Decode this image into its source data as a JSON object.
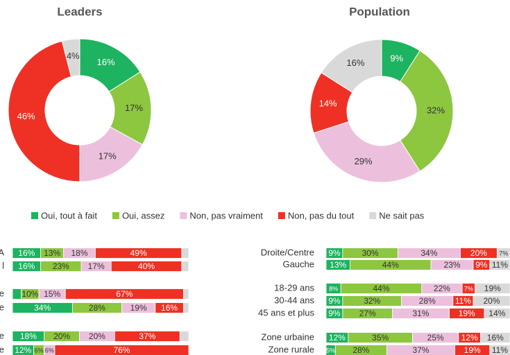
{
  "chart_data": [
    {
      "type": "pie",
      "title": "Leaders",
      "values": [
        16,
        17,
        17,
        46,
        4
      ],
      "value_labels": [
        "16%",
        "17%",
        "17%",
        "46%",
        "4%"
      ],
      "colors": [
        "#1db360",
        "#8dc63f",
        "#ecc0dc",
        "#ee3124",
        "#d9d9d9"
      ]
    },
    {
      "type": "pie",
      "title": "Population",
      "values": [
        9,
        32,
        29,
        14,
        16
      ],
      "value_labels": [
        "9%",
        "32%",
        "29%",
        "14%",
        "16%"
      ],
      "colors": [
        "#1db360",
        "#8dc63f",
        "#ecc0dc",
        "#ee3124",
        "#d9d9d9"
      ]
    },
    {
      "type": "stacked_barh",
      "categories": [
        "A",
        "l",
        "e",
        "e",
        "e",
        "e"
      ],
      "xlim": [
        0,
        100
      ],
      "series": [
        {
          "name": "Oui, tout à fait",
          "color": "#1db360",
          "values": [
            16,
            16,
            5,
            34,
            18,
            12
          ],
          "value_labels": [
            "16%",
            "16%",
            null,
            "34%",
            "18%",
            "12%"
          ]
        },
        {
          "name": "Oui, assez",
          "color": "#8dc63f",
          "values": [
            13,
            23,
            10,
            28,
            20,
            6
          ],
          "value_labels": [
            "13%",
            "23%",
            "10%",
            "28%",
            "20%",
            "6%"
          ]
        },
        {
          "name": "Non, pas vraiment",
          "color": "#ecc0dc",
          "values": [
            18,
            17,
            15,
            19,
            20,
            6
          ],
          "value_labels": [
            "18%",
            "17%",
            "15%",
            "19%",
            "20%",
            "6%"
          ]
        },
        {
          "name": "Non, pas du tout",
          "color": "#ee3124",
          "values": [
            49,
            40,
            67,
            16,
            37,
            76
          ],
          "value_labels": [
            "49%",
            "40%",
            "67%",
            "16%",
            "37%",
            "76%"
          ]
        },
        {
          "name": "Ne sait pas",
          "color": "#d9d9d9",
          "values": [
            4,
            4,
            3,
            3,
            5,
            0
          ],
          "value_labels": [
            null,
            null,
            null,
            null,
            null,
            null
          ]
        }
      ]
    },
    {
      "type": "stacked_barh",
      "categories": [
        "Droite/Centre",
        "Gauche",
        "18-29 ans",
        "30-44 ans",
        "45 ans et plus",
        "Zone urbaine",
        "Zone rurale"
      ],
      "xlim": [
        0,
        100
      ],
      "series": [
        {
          "color": "#1db360",
          "values": [
            9,
            13,
            8,
            9,
            9,
            12,
            5
          ],
          "value_labels": [
            "9%",
            "13%",
            "8%",
            "9%",
            "9%",
            "12%",
            "5%"
          ]
        },
        {
          "color": "#8dc63f",
          "values": [
            30,
            44,
            44,
            32,
            27,
            35,
            28
          ],
          "value_labels": [
            "30%",
            "44%",
            "44%",
            "32%",
            "27%",
            "35%",
            "28%"
          ]
        },
        {
          "color": "#ecc0dc",
          "values": [
            34,
            23,
            22,
            28,
            31,
            25,
            37
          ],
          "value_labels": [
            "34%",
            "23%",
            "22%",
            "28%",
            "31%",
            "25%",
            "37%"
          ]
        },
        {
          "color": "#ee3124",
          "values": [
            20,
            9,
            7,
            11,
            19,
            12,
            19
          ],
          "value_labels": [
            "20%",
            "9%",
            "7%",
            "11%",
            "19%",
            "12%",
            "19%"
          ]
        },
        {
          "color": "#d9d9d9",
          "values": [
            7,
            11,
            19,
            20,
            14,
            16,
            11
          ],
          "value_labels": [
            "7%",
            "11%",
            "19%",
            "20%",
            "14%",
            "16%",
            "11%"
          ]
        }
      ]
    }
  ]
}
